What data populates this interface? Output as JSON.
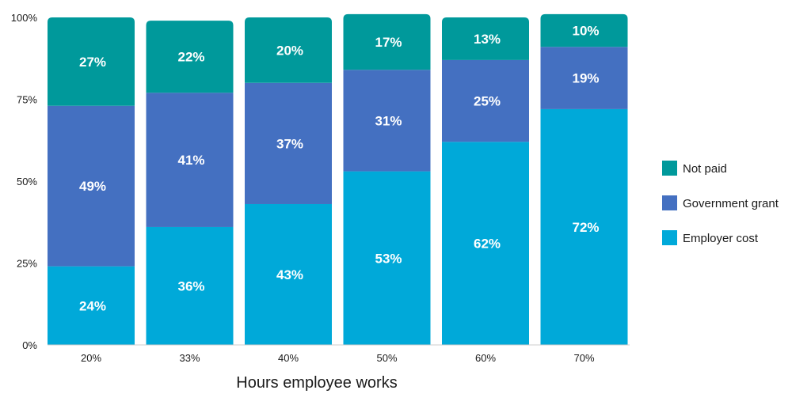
{
  "chart_data": {
    "type": "bar",
    "stacked": true,
    "categories": [
      "20%",
      "33%",
      "40%",
      "50%",
      "60%",
      "70%"
    ],
    "series": [
      {
        "name": "Employer cost",
        "color": "#00a9d9",
        "values": [
          24,
          36,
          43,
          53,
          62,
          72
        ],
        "labels": [
          "24%",
          "36%",
          "43%",
          "53%",
          "62%",
          "72%"
        ]
      },
      {
        "name": "Government grant",
        "color": "#4470c1",
        "values": [
          49,
          41,
          37,
          31,
          25,
          19
        ],
        "labels": [
          "49%",
          "41%",
          "37%",
          "31%",
          "25%",
          "19%"
        ]
      },
      {
        "name": "Not paid",
        "color": "#00999b",
        "values": [
          27,
          22,
          20,
          17,
          13,
          10
        ],
        "labels": [
          "27%",
          "22%",
          "20%",
          "17%",
          "13%",
          "10%"
        ]
      }
    ],
    "xlabel": "Hours employee works",
    "ylabel": "",
    "ylim": [
      0,
      100
    ],
    "yticks": [
      0,
      25,
      50,
      75,
      100
    ],
    "ytick_labels": [
      "0%",
      "25%",
      "50%",
      "75%",
      "100%"
    ],
    "legend": {
      "placement": "right",
      "order": [
        "Not paid",
        "Government grant",
        "Employer cost"
      ]
    },
    "grid": false
  }
}
